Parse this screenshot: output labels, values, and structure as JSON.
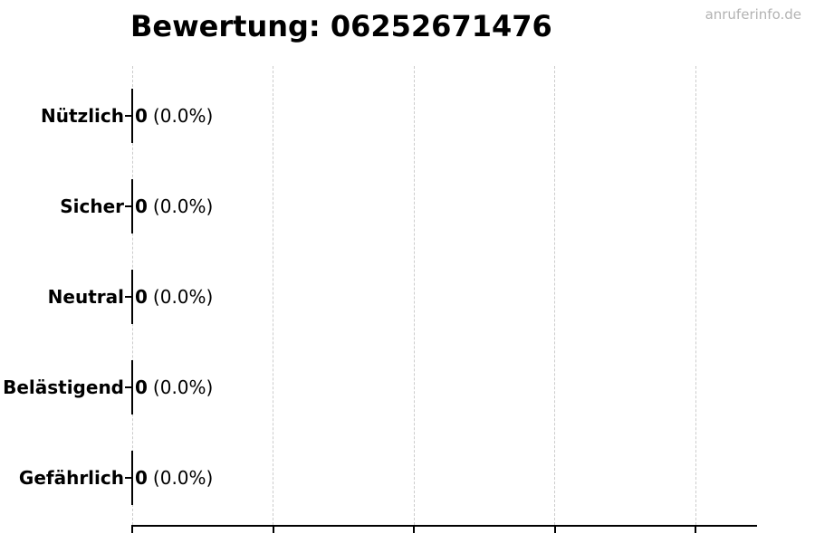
{
  "page": {
    "background": "#ffffff"
  },
  "watermark": {
    "text": "anruferinfo.de",
    "color": "#b3b3b3"
  },
  "chart_data": {
    "type": "bar",
    "orientation": "horizontal",
    "title": "Bewertung: 06252671476",
    "categories": [
      "Nützlich",
      "Sicher",
      "Neutral",
      "Belästigend",
      "Gefährlich"
    ],
    "values": [
      0,
      0,
      0,
      0,
      0
    ],
    "counts": [
      "0",
      "0",
      "0",
      "0",
      "0"
    ],
    "percents": [
      "(0.0%)",
      "(0.0%)",
      "(0.0%)",
      "(0.0%)",
      "(0.0%)"
    ],
    "xlabel": "",
    "ylabel": "",
    "xlim": [
      0,
      4.45
    ],
    "x_gridline_count": 5,
    "grid": {
      "show": true,
      "style": "dashed",
      "color": "#cccccc",
      "direction": "vertical"
    },
    "bar_edge_color": "#000000",
    "axis_color": "#000000",
    "title_color": "#000000",
    "legend": "none"
  }
}
